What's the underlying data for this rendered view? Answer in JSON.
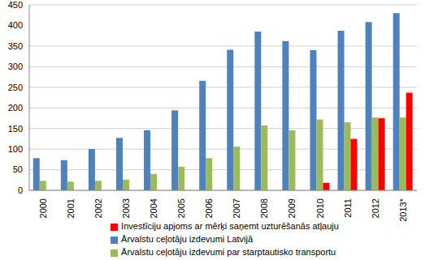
{
  "chart_data": {
    "type": "bar",
    "categories": [
      "2000",
      "2001",
      "2002",
      "2003",
      "2004",
      "2005",
      "2006",
      "2007",
      "2008",
      "2009",
      "2010",
      "2011",
      "2012",
      "2013*"
    ],
    "series": [
      {
        "name": "Ārvalstu ceļotāju izdevumi Latvijā",
        "color": "#4f81bd",
        "values": [
          78,
          73,
          100,
          127,
          146,
          194,
          266,
          341,
          385,
          362,
          340,
          387,
          408,
          430
        ]
      },
      {
        "name": "Ārvalstu ceļotāju izdevumi par starptautisko transportu",
        "color": "#9bbb59",
        "values": [
          23,
          21,
          23,
          26,
          40,
          57,
          78,
          106,
          157,
          146,
          172,
          165,
          177,
          177
        ]
      },
      {
        "name": "Investīciju apjoms ar mērķi saņemt uzturēšanās atļauju",
        "color": "#ff0000",
        "values": [
          null,
          null,
          null,
          null,
          null,
          null,
          null,
          null,
          null,
          null,
          18,
          125,
          175,
          237
        ]
      }
    ],
    "ylim": [
      0,
      450
    ],
    "yticks": [
      0,
      50,
      100,
      150,
      200,
      250,
      300,
      350,
      400,
      450
    ],
    "grid": true,
    "legend": "bottom"
  }
}
